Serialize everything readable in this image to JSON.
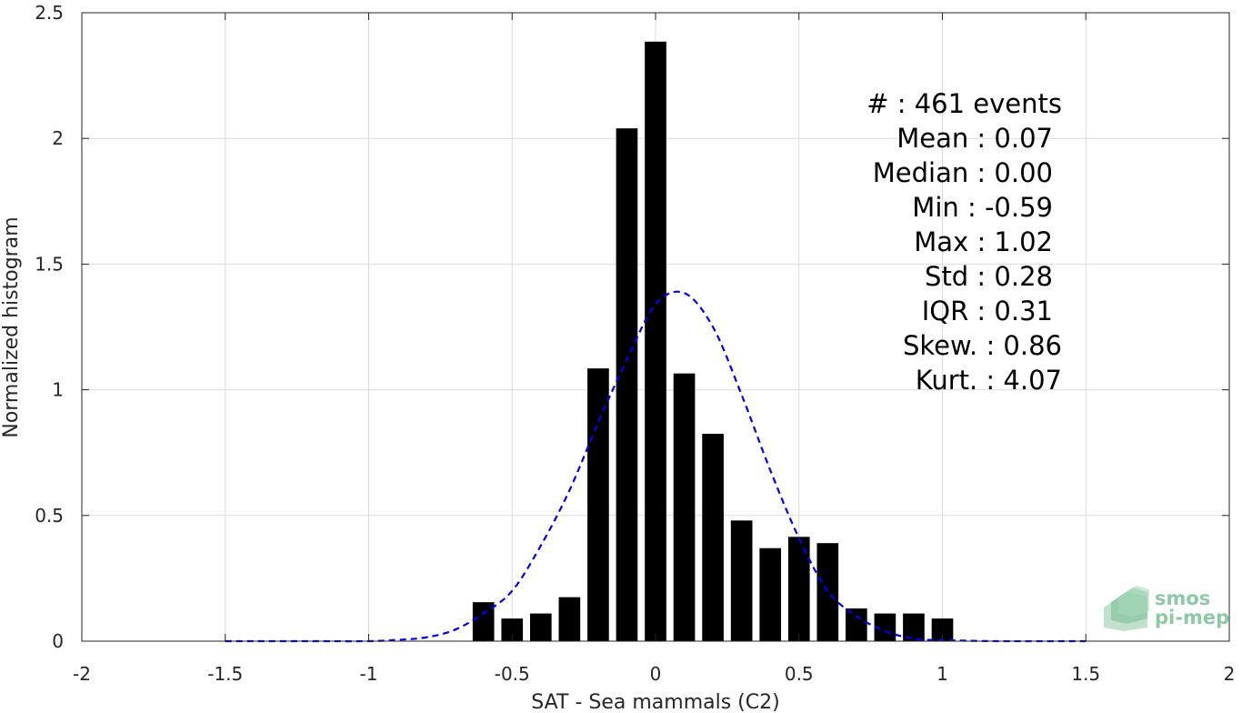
{
  "chart_data": {
    "type": "bar",
    "xlabel": "SAT - Sea mammals (C2)",
    "ylabel": "Normalized histogram",
    "xlim": [
      -2,
      2
    ],
    "ylim": [
      0,
      2.5
    ],
    "xticks": [
      "-2",
      "-1.5",
      "-1",
      "-0.5",
      "0",
      "0.5",
      "1",
      "1.5",
      "2"
    ],
    "yticks": [
      "0",
      "0.5",
      "1",
      "1.5",
      "2",
      "2.5"
    ],
    "grid": true,
    "bins": {
      "centers": [
        -0.6,
        -0.5,
        -0.4,
        -0.3,
        -0.2,
        -0.1,
        0.0,
        0.1,
        0.2,
        0.3,
        0.4,
        0.5,
        0.6,
        0.7,
        0.8,
        0.9,
        1.0
      ],
      "values": [
        0.155,
        0.09,
        0.11,
        0.175,
        1.085,
        2.04,
        2.385,
        1.065,
        0.825,
        0.48,
        0.37,
        0.415,
        0.39,
        0.13,
        0.11,
        0.11,
        0.09
      ],
      "color": "#000000"
    },
    "fit_curve": {
      "style": "dashed",
      "color": "#0000ee",
      "x": [
        -1.5,
        -1.2,
        -1.0,
        -0.9,
        -0.8,
        -0.7,
        -0.6,
        -0.5,
        -0.4,
        -0.3,
        -0.2,
        -0.1,
        0.0,
        0.1,
        0.2,
        0.3,
        0.4,
        0.5,
        0.6,
        0.7,
        0.8,
        0.9,
        1.0,
        1.2,
        1.5
      ],
      "y": [
        0.0,
        0.0,
        0.0,
        0.005,
        0.015,
        0.045,
        0.11,
        0.2,
        0.38,
        0.6,
        0.87,
        1.12,
        1.34,
        1.385,
        1.25,
        0.98,
        0.68,
        0.41,
        0.2,
        0.1,
        0.04,
        0.01,
        0.004,
        0.0,
        0.0
      ]
    },
    "stats": [
      "#  : 461 events",
      "Mean : 0.07",
      "Median : 0.00",
      "Min : -0.59",
      "Max : 1.02",
      "Std : 0.28",
      "IQR : 0.31",
      "Skew. : 0.86",
      "Kurt. : 4.07"
    ]
  },
  "logo": {
    "line1": "smos",
    "line2": "pi-mep",
    "color": "#8ec9a6"
  }
}
